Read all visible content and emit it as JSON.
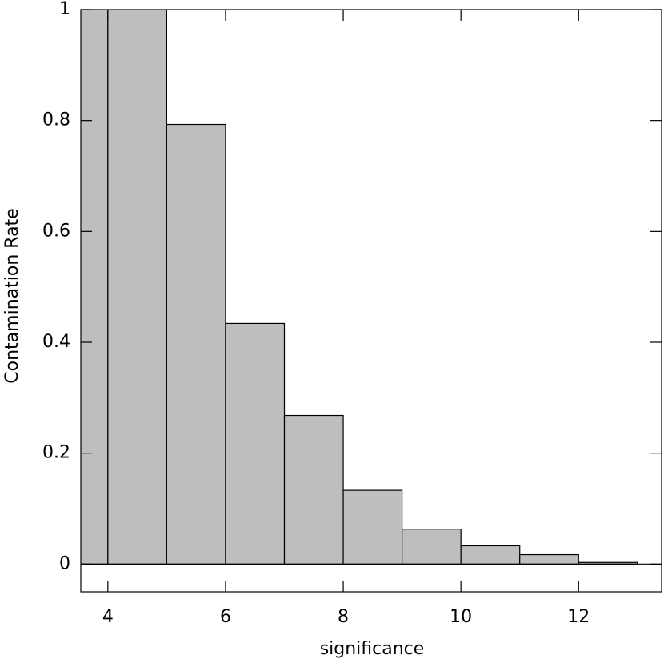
{
  "chart_data": {
    "type": "histogram",
    "x_label": "significance",
    "y_label": "Contamination Rate",
    "bins": [
      3,
      4,
      5,
      6,
      7,
      8,
      9,
      10,
      11,
      12,
      13
    ],
    "values": [
      1,
      1,
      0.793,
      0.434,
      0.268,
      0.133,
      0.063,
      0.033,
      0.017,
      0.003
    ],
    "color": "#bebebe",
    "xlim": [
      3.54,
      13.41
    ],
    "ylim": [
      -0.05,
      1
    ],
    "xticks": [
      4,
      6,
      8,
      10,
      12
    ],
    "yticks": [
      0,
      0.2,
      0.4,
      0.6,
      0.8,
      1
    ],
    "zero_line": true
  }
}
